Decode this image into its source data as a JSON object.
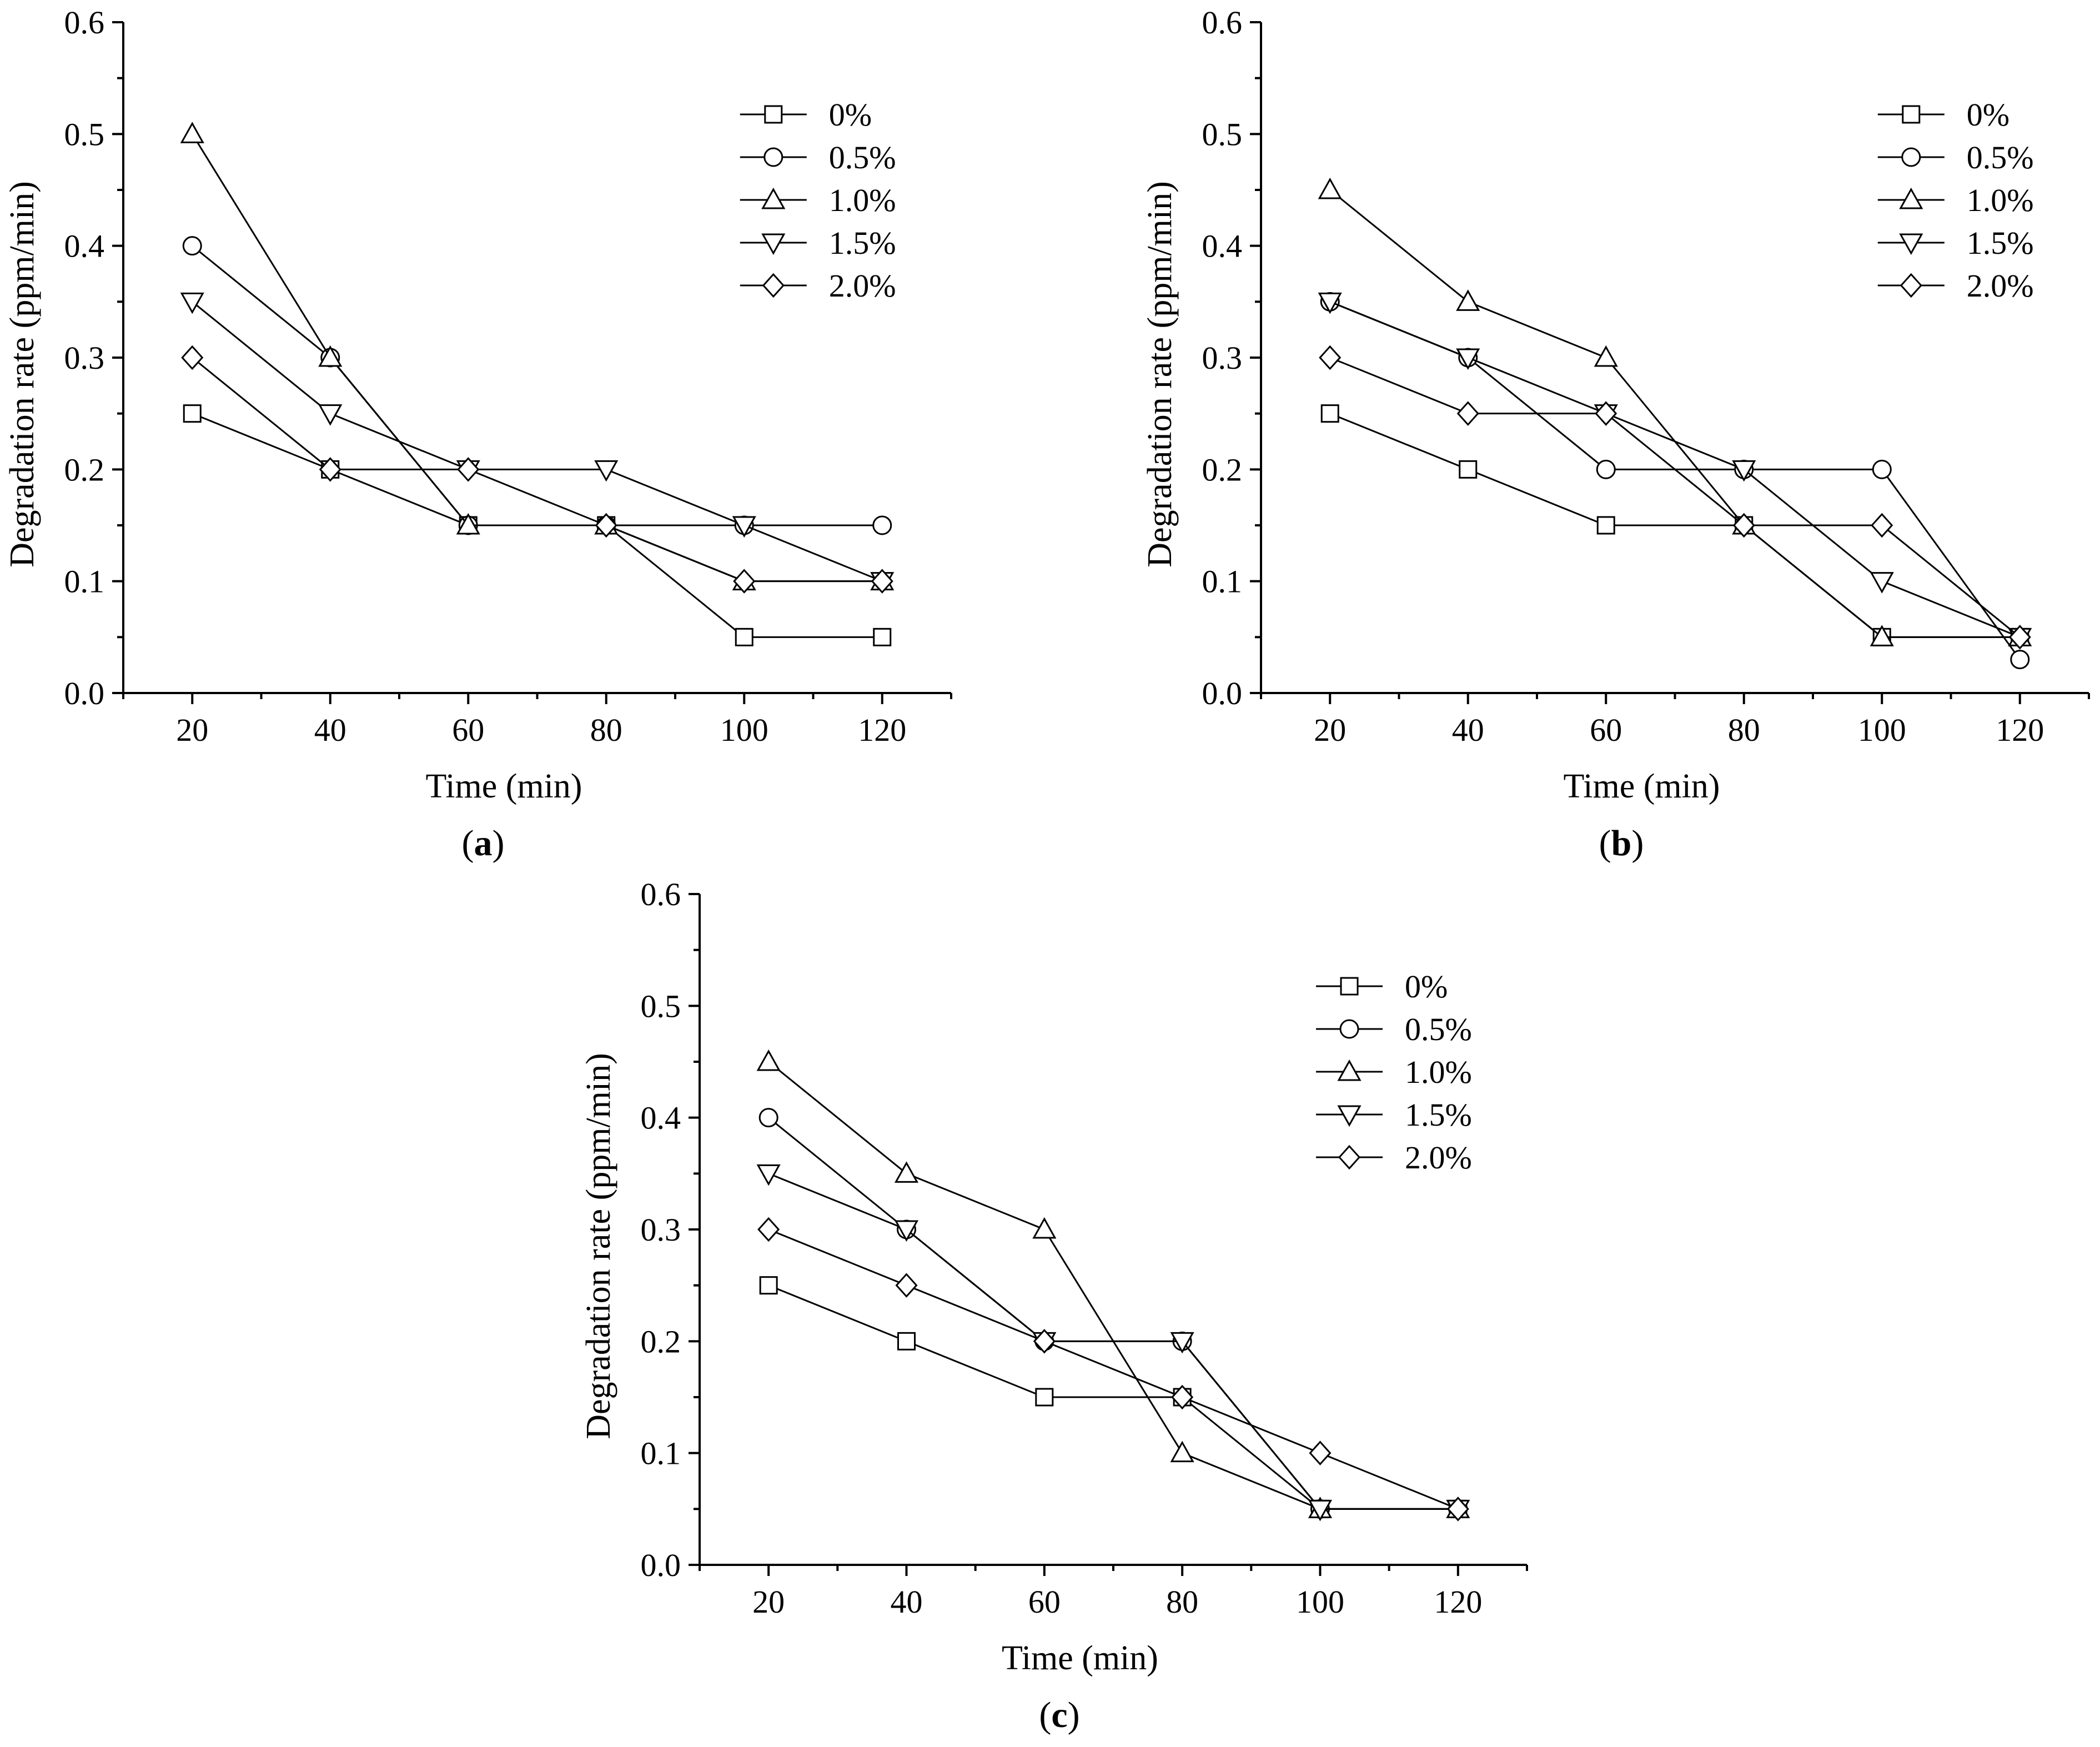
{
  "chart_data": [
    {
      "type": "line",
      "panel_label": "a",
      "xlabel": "Time (min)",
      "ylabel": "Degradation rate (ppm/min)",
      "xlim": [
        10,
        130
      ],
      "ylim": [
        0,
        0.6
      ],
      "x_ticks": [
        20,
        40,
        60,
        80,
        100,
        120
      ],
      "y_ticks": [
        0.0,
        0.1,
        0.2,
        0.3,
        0.4,
        0.5,
        0.6
      ],
      "x_tick_labels": [
        "20",
        "40",
        "60",
        "80",
        "100",
        "120"
      ],
      "y_tick_labels": [
        "0.0",
        "0.1",
        "0.2",
        "0.3",
        "0.4",
        "0.5",
        "0.6"
      ],
      "legend_position": "top-right",
      "grid": false,
      "x": [
        20,
        40,
        60,
        80,
        100,
        120
      ],
      "series": [
        {
          "name": "0%",
          "marker": "square",
          "values": [
            0.25,
            0.2,
            0.15,
            0.15,
            0.05,
            0.05
          ]
        },
        {
          "name": "0.5%",
          "marker": "circle",
          "values": [
            0.4,
            0.3,
            0.15,
            0.15,
            0.15,
            0.15
          ]
        },
        {
          "name": "1.0%",
          "marker": "triangle-up",
          "values": [
            0.5,
            0.3,
            0.15,
            0.15,
            0.1,
            0.1
          ]
        },
        {
          "name": "1.5%",
          "marker": "triangle-down",
          "values": [
            0.35,
            0.25,
            0.2,
            0.2,
            0.15,
            0.1
          ]
        },
        {
          "name": "2.0%",
          "marker": "diamond",
          "values": [
            0.3,
            0.2,
            0.2,
            0.15,
            0.1,
            0.1
          ]
        }
      ]
    },
    {
      "type": "line",
      "panel_label": "b",
      "xlabel": "Time (min)",
      "ylabel": "Degradation rate (ppm/min)",
      "xlim": [
        10,
        130
      ],
      "ylim": [
        0,
        0.6
      ],
      "x_ticks": [
        20,
        40,
        60,
        80,
        100,
        120
      ],
      "y_ticks": [
        0.0,
        0.1,
        0.2,
        0.3,
        0.4,
        0.5,
        0.6
      ],
      "x_tick_labels": [
        "20",
        "40",
        "60",
        "80",
        "100",
        "120"
      ],
      "y_tick_labels": [
        "0.0",
        "0.1",
        "0.2",
        "0.3",
        "0.4",
        "0.5",
        "0.6"
      ],
      "legend_position": "top-right",
      "grid": false,
      "x": [
        20,
        40,
        60,
        80,
        100,
        120
      ],
      "series": [
        {
          "name": "0%",
          "marker": "square",
          "values": [
            0.25,
            0.2,
            0.15,
            0.15,
            0.05,
            0.05
          ]
        },
        {
          "name": "0.5%",
          "marker": "circle",
          "values": [
            0.35,
            0.3,
            0.2,
            0.2,
            0.2,
            0.03
          ]
        },
        {
          "name": "1.0%",
          "marker": "triangle-up",
          "values": [
            0.45,
            0.35,
            0.3,
            0.15,
            0.05,
            0.05
          ]
        },
        {
          "name": "1.5%",
          "marker": "triangle-down",
          "values": [
            0.35,
            0.3,
            0.25,
            0.2,
            0.1,
            0.05
          ]
        },
        {
          "name": "2.0%",
          "marker": "diamond",
          "values": [
            0.3,
            0.25,
            0.25,
            0.15,
            0.15,
            0.05
          ]
        }
      ]
    },
    {
      "type": "line",
      "panel_label": "c",
      "xlabel": "Time (min)",
      "ylabel": "Degradation rate (ppm/min)",
      "xlim": [
        10,
        130
      ],
      "ylim": [
        0,
        0.6
      ],
      "x_ticks": [
        20,
        40,
        60,
        80,
        100,
        120
      ],
      "y_ticks": [
        0.0,
        0.1,
        0.2,
        0.3,
        0.4,
        0.5,
        0.6
      ],
      "x_tick_labels": [
        "20",
        "40",
        "60",
        "80",
        "100",
        "120"
      ],
      "y_tick_labels": [
        "0.0",
        "0.1",
        "0.2",
        "0.3",
        "0.4",
        "0.5",
        "0.6"
      ],
      "legend_position": "top-right",
      "grid": false,
      "x": [
        20,
        40,
        60,
        80,
        100,
        120
      ],
      "series": [
        {
          "name": "0%",
          "marker": "square",
          "values": [
            0.25,
            0.2,
            0.15,
            0.15,
            0.05,
            0.05
          ]
        },
        {
          "name": "0.5%",
          "marker": "circle",
          "values": [
            0.4,
            0.3,
            0.2,
            0.2,
            0.05,
            0.05
          ]
        },
        {
          "name": "1.0%",
          "marker": "triangle-up",
          "values": [
            0.45,
            0.35,
            0.3,
            0.1,
            0.05,
            0.05
          ]
        },
        {
          "name": "1.5%",
          "marker": "triangle-down",
          "values": [
            0.35,
            0.3,
            0.2,
            0.2,
            0.05,
            0.05
          ]
        },
        {
          "name": "2.0%",
          "marker": "diamond",
          "values": [
            0.3,
            0.25,
            0.2,
            0.15,
            0.1,
            0.05
          ]
        }
      ]
    }
  ]
}
